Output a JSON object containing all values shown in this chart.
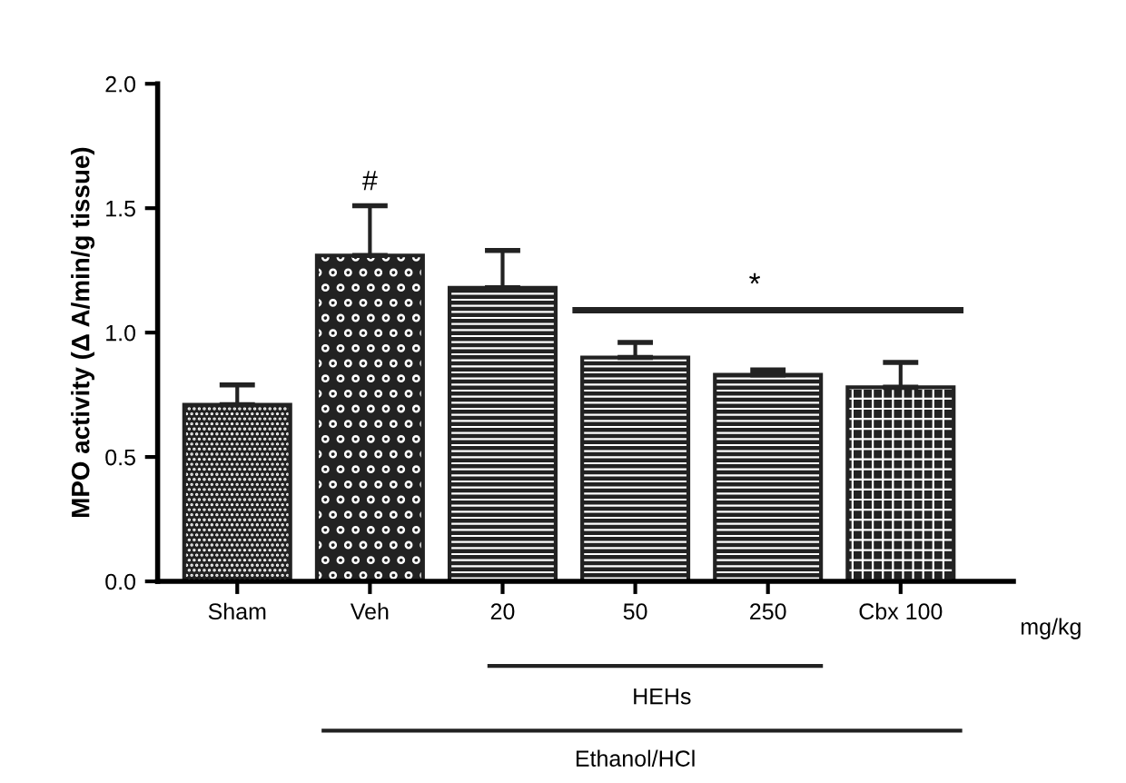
{
  "chart_data": {
    "type": "bar",
    "ylabel": "MPO activity (Δ A/min/g tissue)",
    "categories": [
      "Sham",
      "Veh",
      "20",
      "50",
      "250",
      "Cbx 100"
    ],
    "values": [
      0.71,
      1.31,
      1.18,
      0.9,
      0.83,
      0.78
    ],
    "errors": [
      0.08,
      0.2,
      0.15,
      0.06,
      0.02,
      0.1
    ],
    "colors": [
      "#222222",
      "#222222",
      "#222222",
      "#222222",
      "#222222",
      "#222222"
    ],
    "ylim": [
      0,
      2.0
    ],
    "yticks": [
      {
        "value": 0,
        "label": "0.0"
      },
      {
        "value": 0.5,
        "label": "0.5"
      },
      {
        "value": 1.0,
        "label": "1.0"
      },
      {
        "value": 1.5,
        "label": "1.5"
      },
      {
        "value": 2.0,
        "label": "2.0"
      }
    ],
    "grid": false,
    "legend": false,
    "annotations": [
      {
        "text": "#",
        "x": "Veh",
        "y": 1.51
      },
      "*",
      "mg/kg",
      "HEHs",
      "Ethanol/HCl"
    ]
  }
}
